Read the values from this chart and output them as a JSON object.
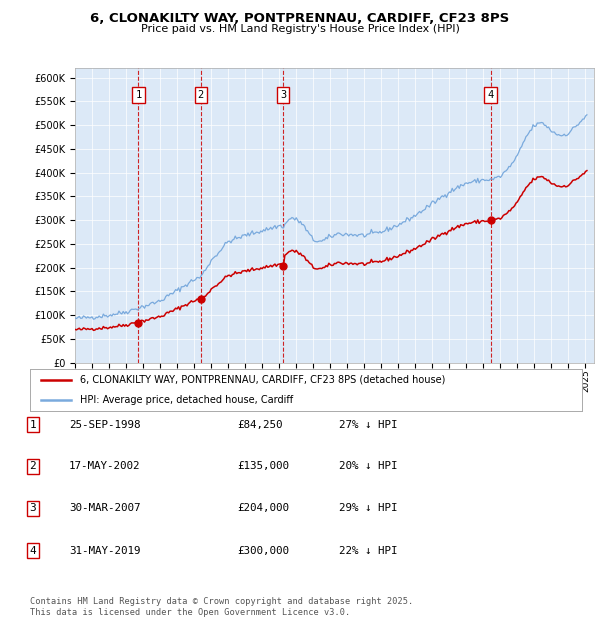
{
  "title": "6, CLONAKILTY WAY, PONTPRENNAU, CARDIFF, CF23 8PS",
  "subtitle": "Price paid vs. HM Land Registry's House Price Index (HPI)",
  "background_color": "#dce9f7",
  "plot_bg_color": "#dce9f7",
  "ylim": [
    0,
    620000
  ],
  "yticks": [
    0,
    50000,
    100000,
    150000,
    200000,
    250000,
    300000,
    350000,
    400000,
    450000,
    500000,
    550000,
    600000
  ],
  "ytick_labels": [
    "£0",
    "£50K",
    "£100K",
    "£150K",
    "£200K",
    "£250K",
    "£300K",
    "£350K",
    "£400K",
    "£450K",
    "£500K",
    "£550K",
    "£600K"
  ],
  "red_line_color": "#cc0000",
  "blue_line_color": "#7aaadd",
  "vline_color": "#cc0000",
  "transaction_dates_num": [
    1998.73,
    2002.38,
    2007.25,
    2019.42
  ],
  "transaction_prices": [
    84250,
    135000,
    204000,
    300000
  ],
  "transaction_labels": [
    "1",
    "2",
    "3",
    "4"
  ],
  "transaction_info": [
    {
      "label": "1",
      "date": "25-SEP-1998",
      "price": "£84,250",
      "hpi": "27% ↓ HPI"
    },
    {
      "label": "2",
      "date": "17-MAY-2002",
      "price": "£135,000",
      "hpi": "20% ↓ HPI"
    },
    {
      "label": "3",
      "date": "30-MAR-2007",
      "price": "£204,000",
      "hpi": "29% ↓ HPI"
    },
    {
      "label": "4",
      "date": "31-MAY-2019",
      "price": "£300,000",
      "hpi": "22% ↓ HPI"
    }
  ],
  "legend_red_label": "6, CLONAKILTY WAY, PONTPRENNAU, CARDIFF, CF23 8PS (detached house)",
  "legend_blue_label": "HPI: Average price, detached house, Cardiff",
  "footer": "Contains HM Land Registry data © Crown copyright and database right 2025.\nThis data is licensed under the Open Government Licence v3.0.",
  "xlim_start": 1995.0,
  "xlim_end": 2025.5
}
